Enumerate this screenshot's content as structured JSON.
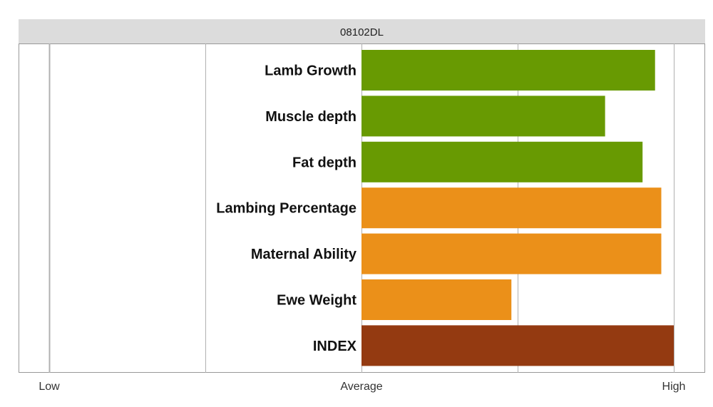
{
  "chart_data": {
    "type": "bar",
    "orientation": "horizontal",
    "title": "08102DL",
    "categories": [
      "Lamb Growth",
      "Muscle depth",
      "Fat depth",
      "Lambing Percentage",
      "Maternal Ability",
      "Ewe Weight",
      "INDEX"
    ],
    "values": [
      0.94,
      0.78,
      0.9,
      0.96,
      0.96,
      0.48,
      1.0
    ],
    "bar_colors": [
      "#689a02",
      "#689a02",
      "#689a02",
      "#eb9019",
      "#eb9019",
      "#eb9019",
      "#943a11"
    ],
    "xlim": [
      -1,
      1
    ],
    "xticks": [
      {
        "value": -1,
        "label": "Low"
      },
      {
        "value": 0,
        "label": "Average"
      },
      {
        "value": 1,
        "label": "High"
      }
    ],
    "gridlines": [
      -1,
      -0.5,
      0,
      0.5,
      1
    ],
    "grid": true,
    "legend": "none"
  },
  "colors": {
    "title_bar": "#dcdcdc",
    "gridline": "#b0b0b0",
    "frame": "#999999"
  }
}
